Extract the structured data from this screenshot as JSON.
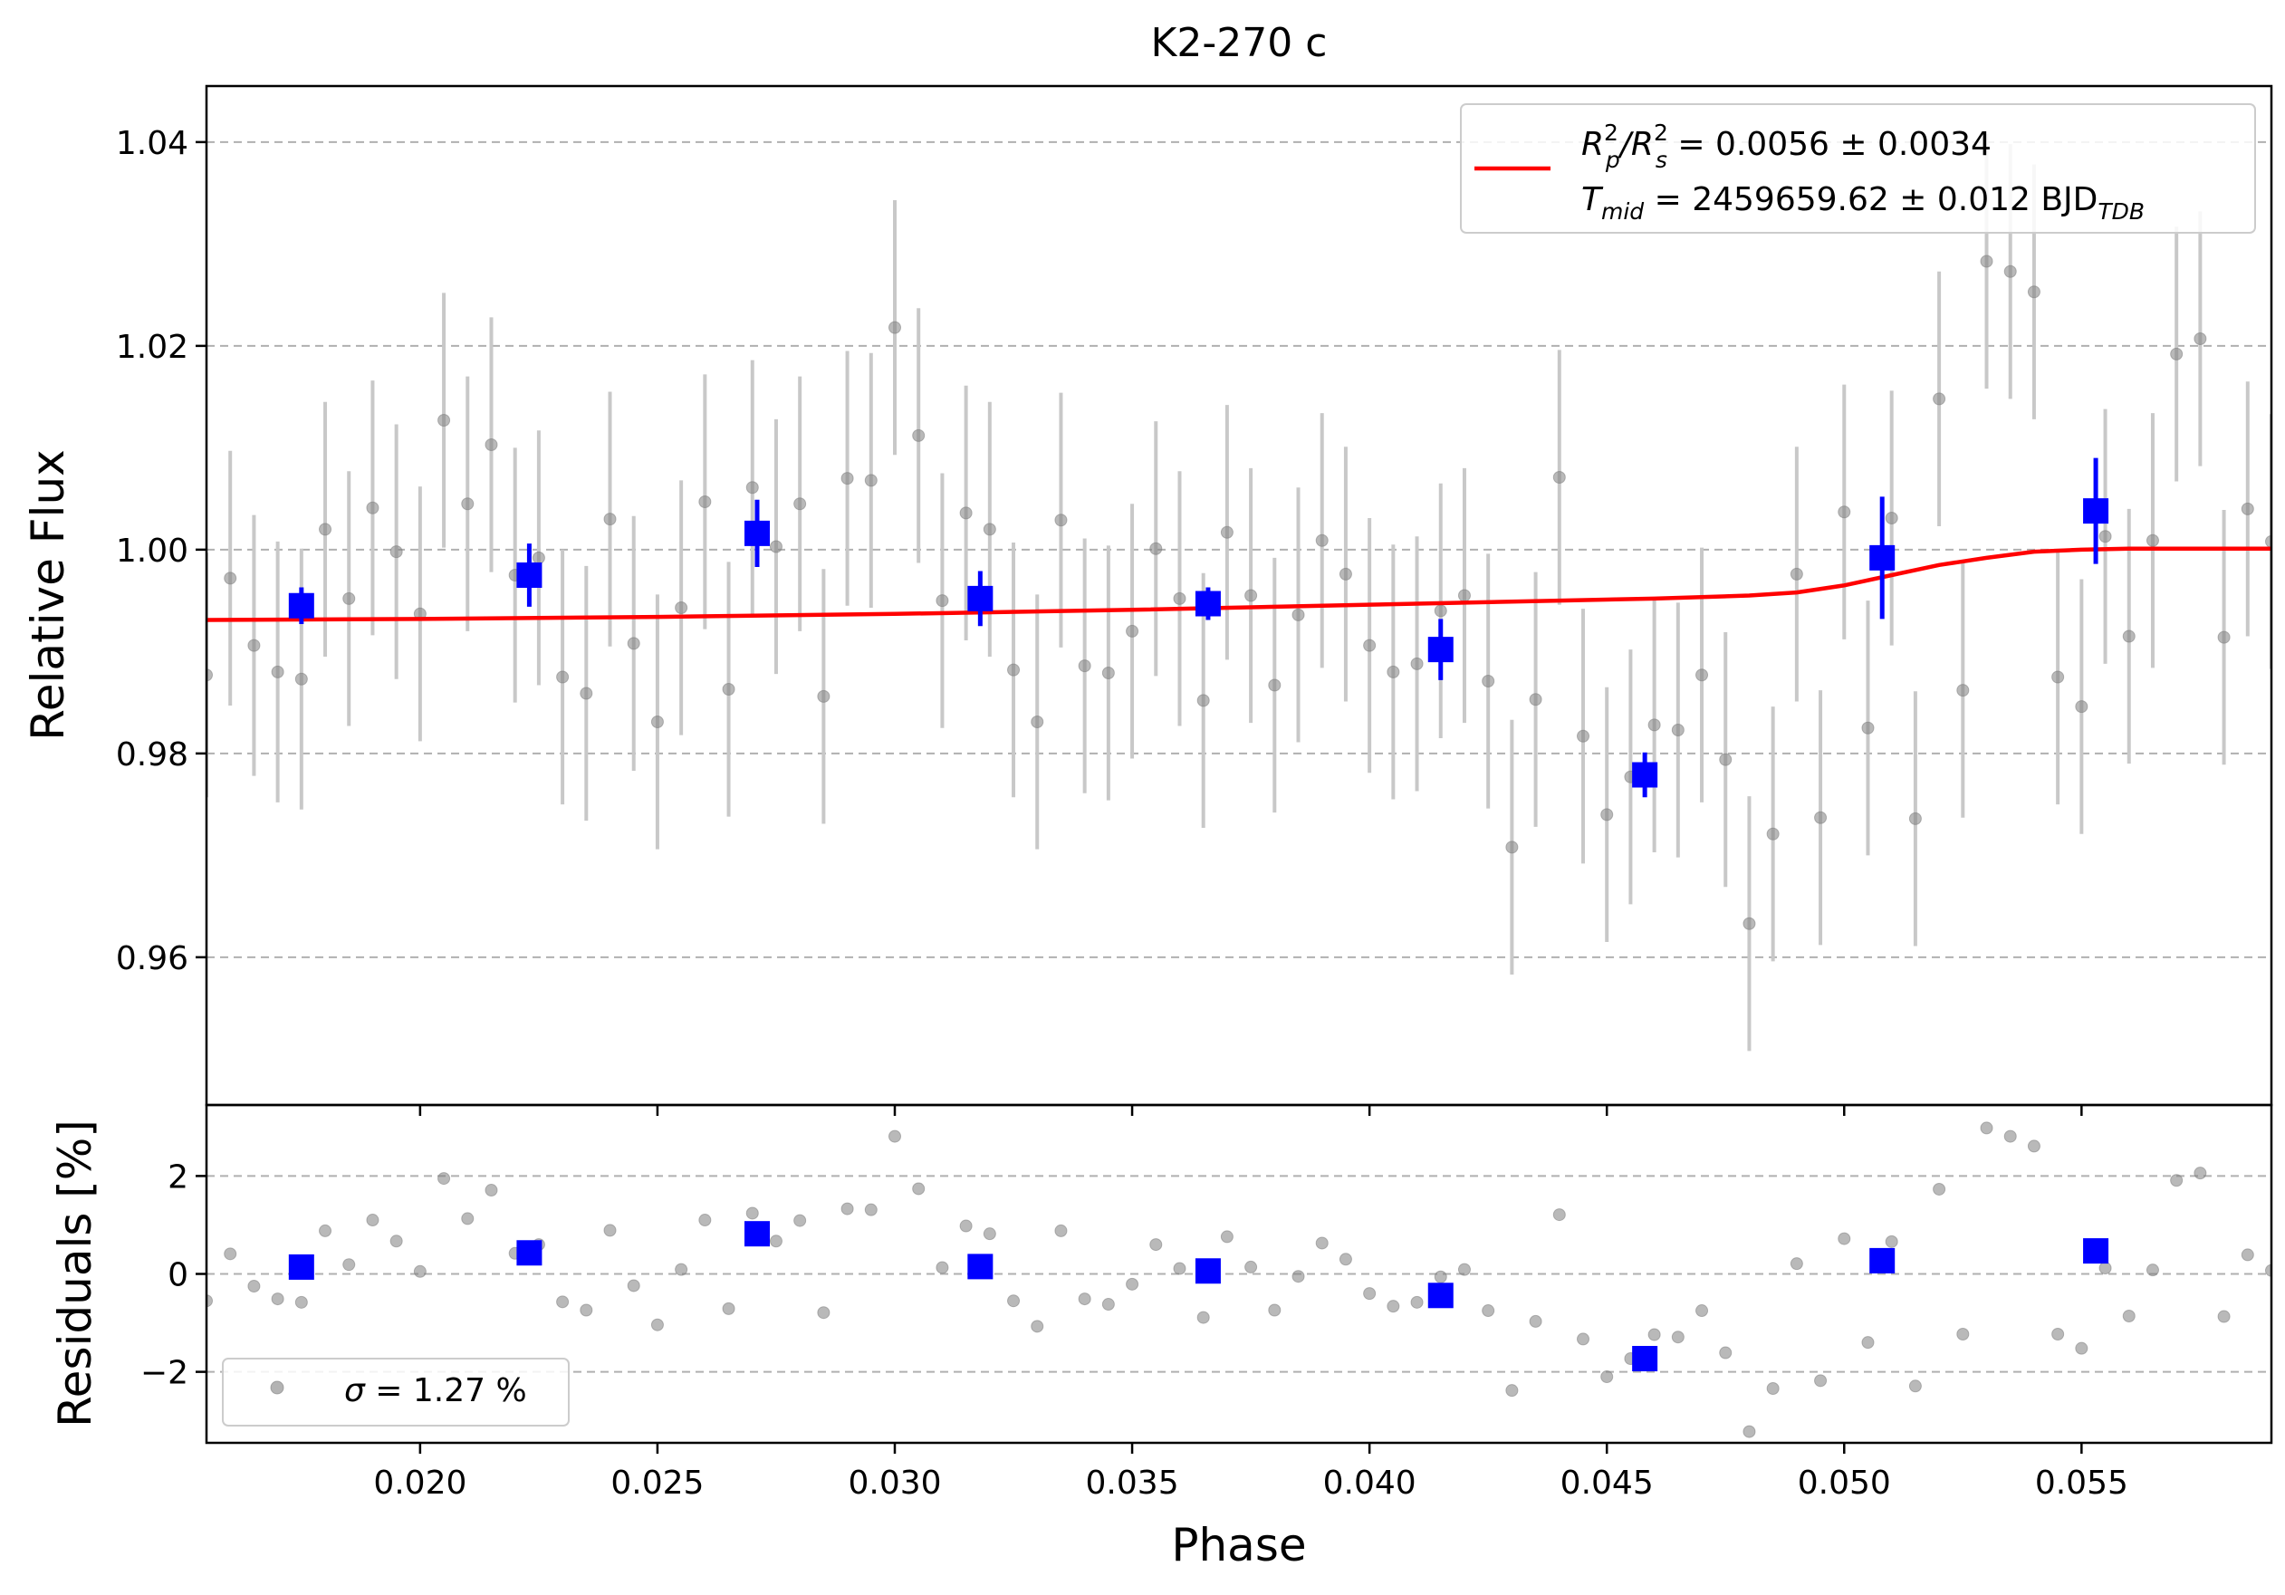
{
  "chart_data": [
    {
      "type": "scatter",
      "panel": "transit",
      "title": "K2-270 c",
      "xlabel": "",
      "ylabel": "Relative Flux",
      "xlim": [
        0.0155,
        0.059
      ],
      "ylim": [
        0.9455,
        1.0455
      ],
      "xticks": [
        0.02,
        0.025,
        0.03,
        0.035,
        0.04,
        0.045,
        0.05,
        0.055
      ],
      "xtick_labels": [
        "",
        "",
        "",
        "",
        "",
        "",
        "",
        ""
      ],
      "yticks": [
        0.96,
        0.98,
        1.0,
        1.02,
        1.04
      ],
      "ytick_labels": [
        "0.96",
        "0.98",
        "1.00",
        "1.02",
        "1.04"
      ],
      "grid": "horizontal dashed",
      "legend_position": "upper-right",
      "legend": {
        "line1_main": "R",
        "line1_sup1": "2",
        "line1_sub1": "p",
        "line1_slash": "/R",
        "line1_sup2": "2",
        "line1_sub2": "s",
        "line1_value": " = 0.0056 ± 0.0034",
        "line2_main": "T",
        "line2_sub": "mid",
        "line2_value": " = 2459659.62 ± 0.012 BJD",
        "line2_unit_sub": "TDB"
      },
      "colors": {
        "raw": "#808080",
        "raw_err": "#c8c8c8",
        "binned": "#0000ff",
        "model": "#ff0000"
      },
      "raw": {
        "x": [
          0.0155,
          0.016,
          0.0165,
          0.017,
          0.0175,
          0.018,
          0.0185,
          0.019,
          0.0195,
          0.02,
          0.0205,
          0.021,
          0.0215,
          0.022,
          0.0225,
          0.023,
          0.0235,
          0.024,
          0.0245,
          0.025,
          0.0255,
          0.026,
          0.0265,
          0.027,
          0.0275,
          0.028,
          0.0285,
          0.029,
          0.0295,
          0.03,
          0.0305,
          0.031,
          0.0315,
          0.032,
          0.0325,
          0.033,
          0.0335,
          0.034,
          0.0345,
          0.035,
          0.0355,
          0.036,
          0.0365,
          0.037,
          0.0375,
          0.038,
          0.0385,
          0.039,
          0.0395,
          0.04,
          0.0405,
          0.041,
          0.0415,
          0.042,
          0.0425,
          0.043,
          0.0435,
          0.044,
          0.0445,
          0.045,
          0.0455,
          0.046,
          0.0465,
          0.047,
          0.0475,
          0.048,
          0.0485,
          0.049,
          0.0495,
          0.05,
          0.0505,
          0.051,
          0.0515,
          0.052,
          0.0525,
          0.053,
          0.0535,
          0.054,
          0.0545,
          0.055,
          0.0555,
          0.056,
          0.0565,
          0.057,
          0.0575,
          0.058,
          0.0585,
          0.059
        ],
        "y": [
          0.9877,
          0.9972,
          0.9906,
          0.988,
          0.9873,
          1.002,
          0.9952,
          1.0041,
          0.9998,
          0.9937,
          1.0127,
          1.0045,
          1.0103,
          0.9975,
          0.9992,
          0.9875,
          0.9859,
          1.003,
          0.9908,
          0.9831,
          0.9943,
          1.0047,
          0.9863,
          1.0061,
          1.0003,
          1.0045,
          0.9856,
          1.007,
          1.0068,
          1.0218,
          1.0112,
          0.995,
          1.0036,
          1.002,
          0.9882,
          0.9831,
          1.0029,
          0.9886,
          0.9879,
          0.992,
          1.0001,
          0.9952,
          0.9852,
          1.0017,
          0.9955,
          0.9867,
          0.9936,
          1.0009,
          0.9976,
          0.9906,
          0.988,
          0.9888,
          0.994,
          0.9955,
          0.9871,
          0.9708,
          0.9853,
          1.0071,
          0.9817,
          0.974,
          0.9777,
          0.9828,
          0.9823,
          0.9877,
          0.9794,
          0.9633,
          0.9721,
          0.9976,
          0.9737,
          1.0037,
          0.9825,
          1.0031,
          0.9736,
          1.0148,
          0.9862,
          1.0283,
          1.0273,
          1.0253,
          0.9875,
          0.9846,
          1.0013,
          0.9915,
          1.0009,
          1.0192,
          1.0207,
          0.9914,
          1.004,
          1.0008
        ],
        "yerr": [
          0.012,
          0.0125,
          0.0128,
          0.0128,
          0.0128,
          0.0125,
          0.0125,
          0.0125,
          0.0125,
          0.0125,
          0.0125,
          0.0125,
          0.0125,
          0.0125,
          0.0125,
          0.0125,
          0.0125,
          0.0125,
          0.0125,
          0.0125,
          0.0125,
          0.0125,
          0.0125,
          0.0125,
          0.0125,
          0.0125,
          0.0125,
          0.0125,
          0.0125,
          0.0125,
          0.0125,
          0.0125,
          0.0125,
          0.0125,
          0.0125,
          0.0125,
          0.0125,
          0.0125,
          0.0125,
          0.0125,
          0.0125,
          0.0125,
          0.0125,
          0.0125,
          0.0125,
          0.0125,
          0.0125,
          0.0125,
          0.0125,
          0.0125,
          0.0125,
          0.0125,
          0.0125,
          0.0125,
          0.0125,
          0.0125,
          0.0125,
          0.0125,
          0.0125,
          0.0125,
          0.0125,
          0.0125,
          0.0125,
          0.0125,
          0.0125,
          0.0125,
          0.0125,
          0.0125,
          0.0125,
          0.0125,
          0.0125,
          0.0125,
          0.0125,
          0.0125,
          0.0125,
          0.0125,
          0.0125,
          0.0125,
          0.0125,
          0.0125,
          0.0125,
          0.0125,
          0.0125,
          0.0125,
          0.0125,
          0.0125,
          0.0125,
          0.0125
        ]
      },
      "binned": {
        "x": [
          0.0175,
          0.0223,
          0.0271,
          0.0318,
          0.0366,
          0.0415,
          0.0458,
          0.0508,
          0.0553
        ],
        "y": [
          0.9945,
          0.9975,
          1.0016,
          0.9952,
          0.9947,
          0.9902,
          0.9779,
          0.9992,
          1.0038
        ],
        "yerr": [
          0.0018,
          0.0031,
          0.0033,
          0.0027,
          0.0016,
          0.003,
          0.0022,
          0.006,
          0.0052
        ]
      },
      "model": {
        "x": [
          0.0155,
          0.02,
          0.025,
          0.03,
          0.035,
          0.04,
          0.044,
          0.046,
          0.048,
          0.049,
          0.05,
          0.051,
          0.052,
          0.053,
          0.054,
          0.055,
          0.056,
          0.057,
          0.059
        ],
        "y": [
          0.9931,
          0.9932,
          0.9934,
          0.9937,
          0.9941,
          0.9946,
          0.995,
          0.9952,
          0.9955,
          0.9958,
          0.9965,
          0.9975,
          0.9985,
          0.9992,
          0.9998,
          1.0,
          1.0001,
          1.0001,
          1.0001
        ]
      }
    },
    {
      "type": "scatter",
      "panel": "residuals",
      "title": "",
      "xlabel": "Phase",
      "ylabel": "Residuals [%]",
      "xlim": [
        0.0155,
        0.059
      ],
      "ylim": [
        -3.45,
        3.45
      ],
      "xticks": [
        0.02,
        0.025,
        0.03,
        0.035,
        0.04,
        0.045,
        0.05,
        0.055
      ],
      "xtick_labels": [
        "0.020",
        "0.025",
        "0.030",
        "0.035",
        "0.040",
        "0.045",
        "0.050",
        "0.055"
      ],
      "yticks": [
        -2,
        0,
        2
      ],
      "ytick_labels": [
        "−2",
        "0",
        "2"
      ],
      "grid": "horizontal dashed",
      "legend_position": "lower-left",
      "legend": {
        "sigma_symbol": "σ",
        "sigma_text": " = 1.27 %"
      },
      "raw": {
        "y": [
          -0.55,
          0.41,
          -0.25,
          -0.51,
          -0.58,
          0.88,
          0.19,
          1.1,
          0.67,
          0.05,
          1.95,
          1.13,
          1.71,
          0.42,
          0.6,
          -0.57,
          -0.74,
          0.89,
          -0.24,
          -1.04,
          0.09,
          1.1,
          -0.71,
          1.24,
          0.67,
          1.09,
          -0.79,
          1.33,
          1.31,
          2.81,
          1.74,
          0.13,
          0.98,
          0.82,
          -0.55,
          -1.07,
          0.88,
          -0.51,
          -0.62,
          -0.21,
          0.6,
          0.11,
          -0.89,
          0.76,
          0.14,
          -0.74,
          -0.05,
          0.63,
          0.3,
          -0.4,
          -0.66,
          -0.58,
          -0.06,
          0.09,
          -0.75,
          -2.38,
          -0.97,
          1.21,
          -1.33,
          -2.1,
          -1.73,
          -1.24,
          -1.29,
          -0.75,
          -1.61,
          -3.22,
          -2.34,
          0.21,
          -2.18,
          0.72,
          -1.4,
          0.66,
          -2.29,
          1.73,
          -1.23,
          2.98,
          2.81,
          2.61,
          -1.23,
          -1.52,
          0.12,
          -0.86,
          0.08,
          1.91,
          2.06,
          -0.87,
          0.39,
          0.07
        ]
      },
      "binned": {
        "x": [
          0.0175,
          0.0223,
          0.0271,
          0.0318,
          0.0366,
          0.0415,
          0.0458,
          0.0508,
          0.0553
        ],
        "y": [
          0.14,
          0.43,
          0.82,
          0.15,
          0.06,
          -0.44,
          -1.73,
          0.27,
          0.47
        ]
      }
    }
  ]
}
